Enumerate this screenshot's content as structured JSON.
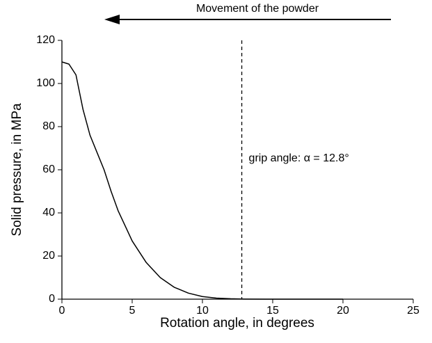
{
  "chart_data": {
    "type": "line",
    "xlabel": "Rotation angle, in degrees",
    "ylabel": "Solid pressure, in MPa",
    "annotations": [
      "Movement of the powder",
      "grip angle: α = 12.8°"
    ],
    "vlines": [
      12.8
    ],
    "x": [
      0,
      0.5,
      1,
      1.5,
      2,
      2.5,
      3,
      3.5,
      4,
      4.5,
      5,
      5.5,
      6,
      7,
      8,
      9,
      10,
      11,
      12,
      13,
      15,
      20
    ],
    "series": [
      {
        "color": "#000000",
        "values": [
          110,
          109,
          104,
          88,
          76,
          68,
          60,
          50,
          41,
          34,
          27,
          22,
          17,
          10,
          5.5,
          2.8,
          1.2,
          0.5,
          0.2,
          0.05,
          0,
          0
        ]
      }
    ],
    "xlim": [
      0,
      25
    ],
    "xticks": [
      0,
      5,
      10,
      15,
      20,
      25
    ],
    "ylim": [
      0,
      120
    ],
    "yticks": [
      0,
      20,
      40,
      60,
      80,
      100,
      120
    ],
    "grid": false
  }
}
